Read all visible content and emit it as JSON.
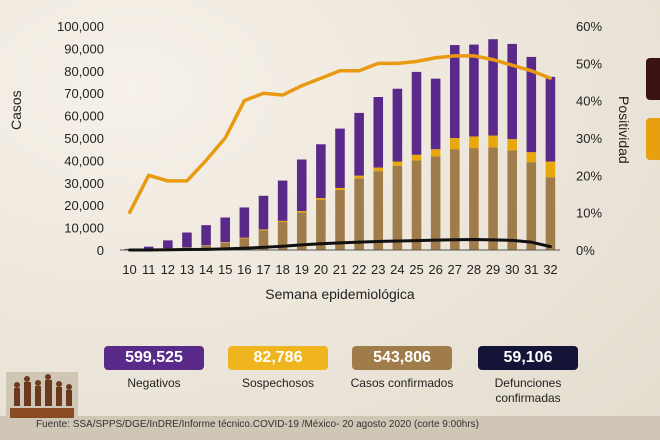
{
  "chart_data": {
    "type": "bar",
    "categories": [
      "10",
      "11",
      "12",
      "13",
      "14",
      "15",
      "16",
      "17",
      "18",
      "19",
      "20",
      "21",
      "22",
      "23",
      "24",
      "25",
      "26",
      "27",
      "28",
      "29",
      "30",
      "31",
      "32"
    ],
    "xlabel": "Semana epidemiológica",
    "ylabel": "Casos",
    "y2label": "Positividad",
    "ylim": [
      0,
      100000
    ],
    "y2lim": [
      0,
      60
    ],
    "yticks": [
      "0",
      "10,000",
      "20,000",
      "30,000",
      "40,000",
      "50,000",
      "60,000",
      "70,000",
      "80,000",
      "90,000",
      "100,000"
    ],
    "y2ticks": [
      "0%",
      "10%",
      "20%",
      "30%",
      "40%",
      "50%",
      "60%"
    ],
    "series": [
      {
        "name": "Casos confirmados",
        "color": "#a07c4a",
        "values": [
          100,
          300,
          700,
          1100,
          1900,
          3200,
          5200,
          8800,
          12500,
          16800,
          22500,
          26800,
          32000,
          35200,
          37500,
          40000,
          41800,
          45000,
          45500,
          45800,
          44500,
          39200,
          32500
        ]
      },
      {
        "name": "Sospechosos",
        "color": "#e8a80c",
        "values": [
          0,
          0,
          100,
          100,
          200,
          300,
          300,
          400,
          500,
          600,
          700,
          900,
          1200,
          1600,
          2000,
          2500,
          3200,
          5000,
          5200,
          5300,
          5000,
          4500,
          7000
        ]
      },
      {
        "name": "Negativos",
        "color": "#5a2a8a",
        "values": [
          400,
          1200,
          3500,
          6600,
          9000,
          11000,
          13500,
          15000,
          18000,
          23000,
          24000,
          26500,
          28000,
          31500,
          32500,
          37000,
          31500,
          41500,
          41000,
          43000,
          42500,
          42500,
          37800
        ]
      },
      {
        "name": "Defunciones confirmadas",
        "type": "line",
        "color": "#111111",
        "values": [
          0,
          0,
          100,
          200,
          300,
          500,
          800,
          1200,
          1700,
          2300,
          2800,
          3200,
          3500,
          3800,
          4000,
          4200,
          4400,
          4600,
          4700,
          4500,
          4300,
          3500,
          1500
        ]
      },
      {
        "name": "Positividad (%)",
        "type": "line",
        "axis": "right",
        "color": "#e89a10",
        "values": [
          10,
          20,
          18.5,
          18.5,
          24,
          30,
          40,
          42,
          41.5,
          44,
          46,
          48,
          48,
          50,
          50,
          50.5,
          51.5,
          52,
          52,
          51,
          49.5,
          48,
          46
        ]
      }
    ]
  },
  "cards": [
    {
      "value": "599,525",
      "label": "Negativos",
      "color": "#5a2a8a",
      "text_color": "#ffffff"
    },
    {
      "value": "82,786",
      "label": "Sospechosos",
      "color": "#f0b41e",
      "text_color": "#ffffff"
    },
    {
      "value": "543,806",
      "label": "Casos confirmados",
      "color": "#a07c4a",
      "text_color": "#ffffff"
    },
    {
      "value": "59,106",
      "label": "Defunciones confirmadas",
      "color": "#141438",
      "text_color": "#ffffff"
    }
  ],
  "legend_swatches": [
    "#3a1212",
    "#e8a010"
  ],
  "footer": {
    "source": "Fuente: SSA/SPPS/DGE/InDRE/Informe técnico.COVID-19 /México- 20 agosto 2020 (corte 9:00hrs)"
  }
}
